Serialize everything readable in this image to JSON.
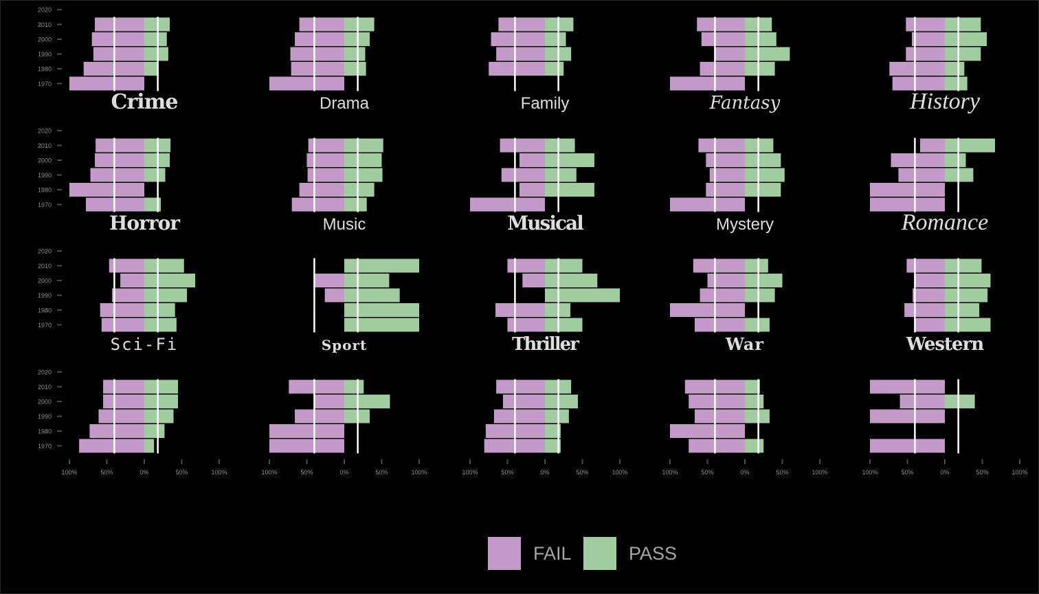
{
  "colors": {
    "fail": "#c49ac8",
    "pass": "#a0cc9f",
    "background": "#000000",
    "axis_text": "#8c8c8c",
    "title_text": "#dedede"
  },
  "legend": {
    "fail_label": "FAIL",
    "pass_label": "PASS"
  },
  "chart_data": {
    "type": "bar",
    "orientation": "horizontal-diverging",
    "y_ticks": [
      "2020",
      "2010",
      "2000",
      "1990",
      "1980",
      "1970"
    ],
    "categories": [
      "2010",
      "2000",
      "1990",
      "1980",
      "1970"
    ],
    "x_ticks": [
      "100%",
      "50%",
      "0%",
      "50%",
      "100%"
    ],
    "xlim": [
      -100,
      100
    ],
    "series_names": [
      "FAIL",
      "PASS"
    ],
    "panels": [
      {
        "genre": "Crime",
        "fail": [
          66,
          70,
          68,
          81,
          100
        ],
        "pass": [
          34,
          30,
          32,
          19,
          0
        ]
      },
      {
        "genre": "Drama",
        "fail": [
          60,
          66,
          72,
          71,
          100
        ],
        "pass": [
          40,
          34,
          28,
          29,
          0
        ]
      },
      {
        "genre": "Family",
        "fail": [
          62,
          72,
          65,
          75,
          0
        ],
        "pass": [
          38,
          28,
          35,
          25,
          0
        ]
      },
      {
        "genre": "Fantasy",
        "fail": [
          64,
          58,
          40,
          60,
          100
        ],
        "pass": [
          36,
          42,
          60,
          40,
          0
        ]
      },
      {
        "genre": "History",
        "fail": [
          52,
          44,
          52,
          74,
          70
        ],
        "pass": [
          48,
          56,
          48,
          26,
          30
        ]
      },
      {
        "genre": "Horror",
        "fail": [
          65,
          66,
          72,
          100,
          78
        ],
        "pass": [
          35,
          34,
          28,
          0,
          22
        ]
      },
      {
        "genre": "Music",
        "fail": [
          48,
          50,
          49,
          60,
          70
        ],
        "pass": [
          52,
          50,
          51,
          40,
          30
        ]
      },
      {
        "genre": "Musical",
        "fail": [
          60,
          34,
          58,
          34,
          100
        ],
        "pass": [
          40,
          66,
          42,
          66,
          0
        ]
      },
      {
        "genre": "Mystery",
        "fail": [
          62,
          52,
          47,
          52,
          100
        ],
        "pass": [
          38,
          48,
          53,
          48,
          0
        ]
      },
      {
        "genre": "Romance",
        "fail": [
          33,
          72,
          62,
          100,
          100
        ],
        "pass": [
          67,
          28,
          38,
          0,
          0
        ]
      },
      {
        "genre": "Sci-Fi",
        "fail": [
          47,
          32,
          43,
          59,
          57
        ],
        "pass": [
          53,
          68,
          57,
          41,
          43
        ]
      },
      {
        "genre": "Sport",
        "fail": [
          0,
          40,
          26,
          0,
          0
        ],
        "pass": [
          100,
          60,
          74,
          100,
          100
        ]
      },
      {
        "genre": "Thriller",
        "fail": [
          50,
          30,
          0,
          66,
          50
        ],
        "pass": [
          50,
          70,
          100,
          34,
          50
        ]
      },
      {
        "genre": "War",
        "fail": [
          69,
          50,
          60,
          100,
          67
        ],
        "pass": [
          31,
          50,
          40,
          0,
          33
        ]
      },
      {
        "genre": "Western",
        "fail": [
          51,
          39,
          43,
          54,
          39
        ],
        "pass": [
          49,
          61,
          57,
          46,
          61
        ]
      },
      {
        "genre": "",
        "fail": [
          55,
          55,
          61,
          73,
          87
        ],
        "pass": [
          45,
          45,
          39,
          27,
          13
        ]
      },
      {
        "genre": "",
        "fail": [
          74,
          39,
          66,
          100,
          100
        ],
        "pass": [
          26,
          61,
          34,
          0,
          0
        ]
      },
      {
        "genre": "",
        "fail": [
          65,
          56,
          68,
          79,
          81
        ],
        "pass": [
          35,
          44,
          32,
          21,
          21
        ]
      },
      {
        "genre": "",
        "fail": [
          80,
          75,
          67,
          100,
          75
        ],
        "pass": [
          20,
          25,
          33,
          0,
          25
        ]
      },
      {
        "genre": "",
        "fail": [
          100,
          60,
          100,
          0,
          100
        ],
        "pass": [
          0,
          40,
          0,
          0,
          0
        ]
      }
    ]
  }
}
